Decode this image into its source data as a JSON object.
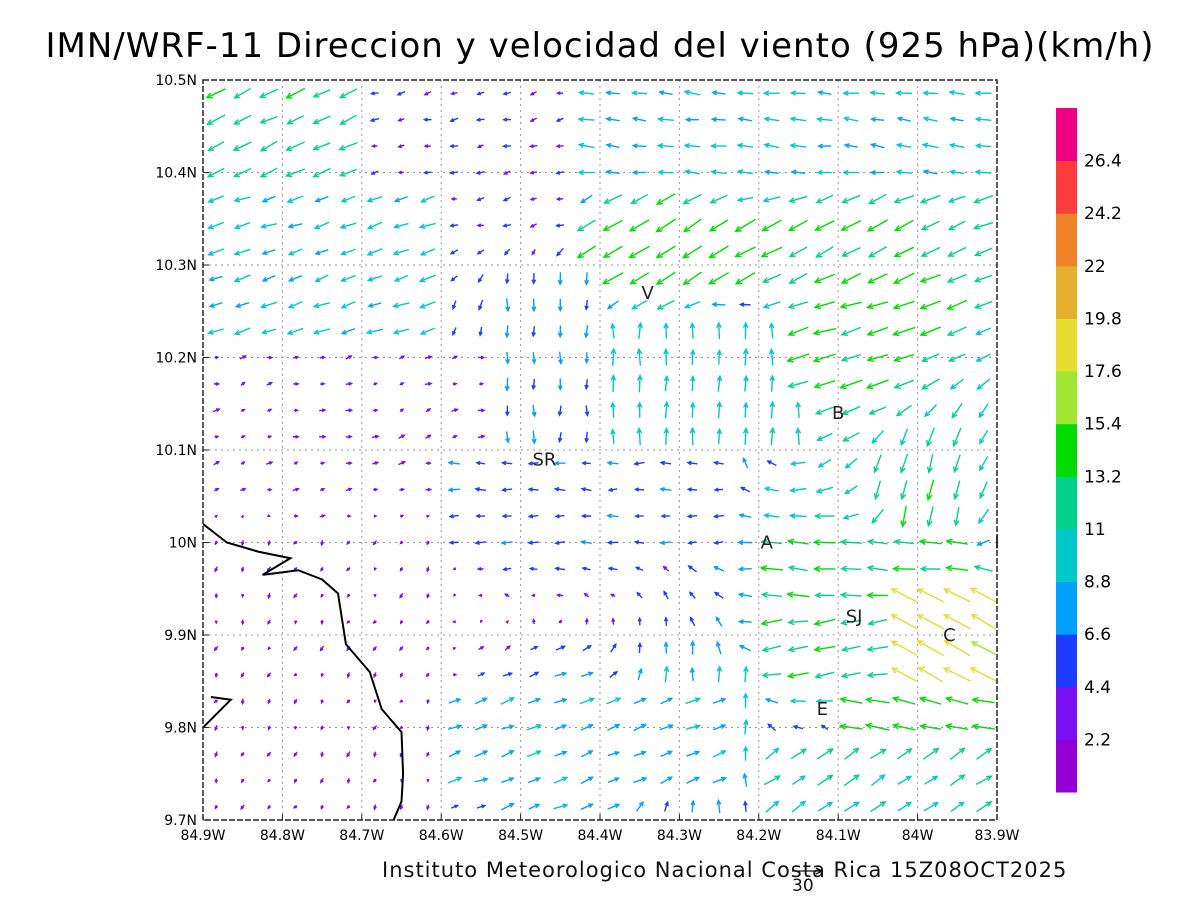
{
  "title": "IMN/WRF-11 Direccion y velocidad del viento (925 hPa)(km/h)",
  "credit": "Instituto Meteorologico Nacional Costa Rica 15Z08OCT2025",
  "reference_vector": {
    "label": "30",
    "magnitude": 30
  },
  "map": {
    "lon_range": [
      -84.9,
      -83.9
    ],
    "lat_range": [
      9.7,
      10.5
    ],
    "lon_ticks": [
      {
        "value": -84.9,
        "label": "84.9W"
      },
      {
        "value": -84.8,
        "label": "84.8W"
      },
      {
        "value": -84.7,
        "label": "84.7W"
      },
      {
        "value": -84.6,
        "label": "84.6W"
      },
      {
        "value": -84.5,
        "label": "84.5W"
      },
      {
        "value": -84.4,
        "label": "84.4W"
      },
      {
        "value": -84.3,
        "label": "84.3W"
      },
      {
        "value": -84.2,
        "label": "84.2W"
      },
      {
        "value": -84.1,
        "label": "84.1W"
      },
      {
        "value": -84.0,
        "label": "84W"
      },
      {
        "value": -83.9,
        "label": "83.9W"
      }
    ],
    "lat_ticks": [
      {
        "value": 9.7,
        "label": "9.7N"
      },
      {
        "value": 9.8,
        "label": "9.8N"
      },
      {
        "value": 9.9,
        "label": "9.9N"
      },
      {
        "value": 10.0,
        "label": "10N"
      },
      {
        "value": 10.1,
        "label": "10.1N"
      },
      {
        "value": 10.2,
        "label": "10.2N"
      },
      {
        "value": 10.3,
        "label": "10.3N"
      },
      {
        "value": 10.4,
        "label": "10.4N"
      },
      {
        "value": 10.5,
        "label": "10.5N"
      }
    ],
    "grid": true,
    "places": [
      {
        "label": "V",
        "lon": -84.34,
        "lat": 10.27
      },
      {
        "label": "B",
        "lon": -84.1,
        "lat": 10.14
      },
      {
        "label": "SR",
        "lon": -84.47,
        "lat": 10.09
      },
      {
        "label": "A",
        "lon": -84.19,
        "lat": 10.0
      },
      {
        "label": "I",
        "lon": -83.9,
        "lat": 10.0
      },
      {
        "label": "SJ",
        "lon": -84.08,
        "lat": 9.92
      },
      {
        "label": "C",
        "lon": -83.96,
        "lat": 9.9
      },
      {
        "label": "E",
        "lon": -84.12,
        "lat": 9.82
      }
    ],
    "coastline": [
      [
        -84.9,
        10.02
      ],
      [
        -84.87,
        10.0
      ],
      [
        -84.83,
        9.99
      ],
      [
        -84.79,
        9.983
      ],
      [
        -84.825,
        9.965
      ],
      [
        -84.78,
        9.97
      ],
      [
        -84.75,
        9.96
      ],
      [
        -84.73,
        9.945
      ],
      [
        -84.72,
        9.89
      ],
      [
        -84.69,
        9.86
      ],
      [
        -84.675,
        9.82
      ],
      [
        -84.65,
        9.795
      ],
      [
        -84.648,
        9.75
      ],
      [
        -84.65,
        9.72
      ],
      [
        -84.66,
        9.7
      ]
    ],
    "coastline2": [
      [
        -84.9,
        9.8
      ],
      [
        -84.865,
        9.83
      ],
      [
        -84.89,
        9.833
      ]
    ]
  },
  "colorbar": {
    "colors": [
      "#9400d3",
      "#7a0ff0",
      "#1e3cff",
      "#00a0ff",
      "#00c8c8",
      "#00d28c",
      "#00dc00",
      "#a0e632",
      "#e6dc32",
      "#e6af2d",
      "#f08228",
      "#fa3c3c",
      "#f00082"
    ],
    "labels": [
      "2.2",
      "4.4",
      "6.6",
      "8.8",
      "11",
      "13.2",
      "15.4",
      "17.6",
      "19.8",
      "22",
      "24.2",
      "26.4"
    ]
  },
  "chart_data": {
    "type": "vector_field",
    "variable": "wind direction and speed",
    "level_hPa": 925,
    "units": "km/h",
    "lon_range": [
      -84.9,
      -83.9
    ],
    "lat_range": [
      9.7,
      10.5
    ],
    "regions": [
      {
        "lon": [
          -84.9,
          -84.7
        ],
        "lat": [
          10.38,
          10.5
        ],
        "u": -11,
        "v": -5
      },
      {
        "lon": [
          -84.7,
          -84.42
        ],
        "lat": [
          10.32,
          10.5
        ],
        "u": -4,
        "v": -1
      },
      {
        "lon": [
          -84.42,
          -83.9
        ],
        "lat": [
          10.4,
          10.5
        ],
        "u": -9,
        "v": 1
      },
      {
        "lon": [
          -84.9,
          -84.6
        ],
        "lat": [
          10.22,
          10.38
        ],
        "u": -9,
        "v": -3
      },
      {
        "lon": [
          -84.42,
          -84.2
        ],
        "lat": [
          10.26,
          10.36
        ],
        "u": -12,
        "v": -7
      },
      {
        "lon": [
          -84.2,
          -84.0
        ],
        "lat": [
          10.26,
          10.36
        ],
        "u": -12,
        "v": -6
      },
      {
        "lon": [
          -84.55,
          -84.4
        ],
        "lat": [
          10.1,
          10.3
        ],
        "u": 0,
        "v": -7
      },
      {
        "lon": [
          -84.4,
          -84.15
        ],
        "lat": [
          10.1,
          10.25
        ],
        "u": 0,
        "v": 10
      },
      {
        "lon": [
          -84.15,
          -84.0
        ],
        "lat": [
          10.15,
          10.26
        ],
        "u": -13,
        "v": -4
      },
      {
        "lon": [
          -84.9,
          -84.55
        ],
        "lat": [
          10.05,
          10.2
        ],
        "u": 3,
        "v": 1
      },
      {
        "lon": [
          -84.6,
          -84.25
        ],
        "lat": [
          10.0,
          10.1
        ],
        "u": -6,
        "v": 0
      },
      {
        "lon": [
          -84.05,
          -83.95
        ],
        "lat": [
          10.0,
          10.1
        ],
        "u": -3,
        "v": -12
      },
      {
        "lon": [
          -84.2,
          -83.95
        ],
        "lat": [
          9.93,
          10.0
        ],
        "u": -13,
        "v": 1
      },
      {
        "lon": [
          -84.05,
          -83.9
        ],
        "lat": [
          9.85,
          9.95
        ],
        "u": -16,
        "v": 9
      },
      {
        "lon": [
          -84.2,
          -84.05
        ],
        "lat": [
          9.85,
          9.93
        ],
        "u": -12,
        "v": -2
      },
      {
        "lon": [
          -84.35,
          -84.2
        ],
        "lat": [
          9.75,
          9.88
        ],
        "u": 0,
        "v": 9
      },
      {
        "lon": [
          -84.1,
          -83.9
        ],
        "lat": [
          9.78,
          9.85
        ],
        "u": -14,
        "v": 3
      },
      {
        "lon": [
          -84.6,
          -84.25
        ],
        "lat": [
          9.72,
          9.85
        ],
        "u": 8,
        "v": 3
      },
      {
        "lon": [
          -84.2,
          -83.9
        ],
        "lat": [
          9.7,
          9.78
        ],
        "u": 9,
        "v": 6
      },
      {
        "lon": [
          -84.9,
          -84.6
        ],
        "lat": [
          9.7,
          10.0
        ],
        "u": -1,
        "v": -2
      }
    ]
  }
}
